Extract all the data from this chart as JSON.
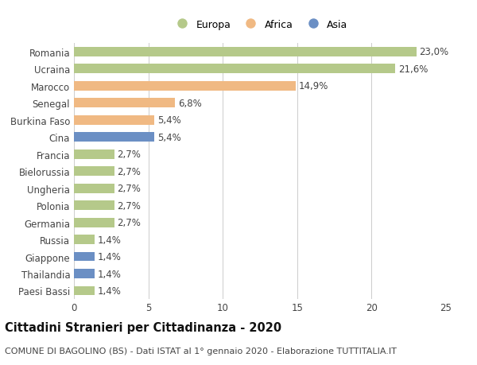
{
  "categories": [
    "Paesi Bassi",
    "Thailandia",
    "Giappone",
    "Russia",
    "Germania",
    "Polonia",
    "Ungheria",
    "Bielorussia",
    "Francia",
    "Cina",
    "Burkina Faso",
    "Senegal",
    "Marocco",
    "Ucraina",
    "Romania"
  ],
  "values": [
    1.4,
    1.4,
    1.4,
    1.4,
    2.7,
    2.7,
    2.7,
    2.7,
    2.7,
    5.4,
    5.4,
    6.8,
    14.9,
    21.6,
    23.0
  ],
  "labels": [
    "1,4%",
    "1,4%",
    "1,4%",
    "1,4%",
    "2,7%",
    "2,7%",
    "2,7%",
    "2,7%",
    "2,7%",
    "5,4%",
    "5,4%",
    "6,8%",
    "14,9%",
    "21,6%",
    "23,0%"
  ],
  "continents": [
    "Europa",
    "Asia",
    "Asia",
    "Europa",
    "Europa",
    "Europa",
    "Europa",
    "Europa",
    "Europa",
    "Asia",
    "Africa",
    "Africa",
    "Africa",
    "Europa",
    "Europa"
  ],
  "colors": {
    "Europa": "#b5c98a",
    "Africa": "#f0b983",
    "Asia": "#6b8fc4"
  },
  "legend_labels": [
    "Europa",
    "Africa",
    "Asia"
  ],
  "legend_colors": [
    "#b5c98a",
    "#f0b983",
    "#6b8fc4"
  ],
  "title": "Cittadini Stranieri per Cittadinanza - 2020",
  "subtitle": "COMUNE DI BAGOLINO (BS) - Dati ISTAT al 1° gennaio 2020 - Elaborazione TUTTITALIA.IT",
  "xlim": [
    0,
    25
  ],
  "xticks": [
    0,
    5,
    10,
    15,
    20,
    25
  ],
  "background_color": "#ffffff",
  "bar_height": 0.55,
  "label_fontsize": 8.5,
  "title_fontsize": 10.5,
  "subtitle_fontsize": 8,
  "tick_fontsize": 8.5,
  "legend_fontsize": 9
}
